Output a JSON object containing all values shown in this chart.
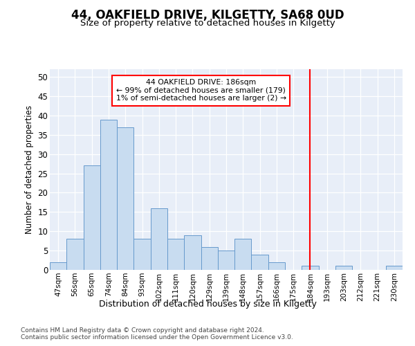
{
  "title": "44, OAKFIELD DRIVE, KILGETTY, SA68 0UD",
  "subtitle": "Size of property relative to detached houses in Kilgetty",
  "xlabel": "Distribution of detached houses by size in Kilgetty",
  "ylabel": "Number of detached properties",
  "bar_color": "#c8dcf0",
  "bar_edge_color": "#6699cc",
  "background_color": "#e8eef8",
  "categories": [
    "47sqm",
    "56sqm",
    "65sqm",
    "74sqm",
    "84sqm",
    "93sqm",
    "102sqm",
    "111sqm",
    "120sqm",
    "129sqm",
    "139sqm",
    "148sqm",
    "157sqm",
    "166sqm",
    "175sqm",
    "184sqm",
    "193sqm",
    "203sqm",
    "212sqm",
    "221sqm",
    "230sqm"
  ],
  "values": [
    2,
    8,
    27,
    39,
    37,
    8,
    16,
    8,
    9,
    6,
    5,
    8,
    4,
    2,
    0,
    1,
    0,
    1,
    0,
    0,
    1
  ],
  "ylim": [
    0,
    52
  ],
  "yticks": [
    0,
    5,
    10,
    15,
    20,
    25,
    30,
    35,
    40,
    45,
    50
  ],
  "vline_x": 15,
  "annotation_title": "44 OAKFIELD DRIVE: 186sqm",
  "annotation_line1": "← 99% of detached houses are smaller (179)",
  "annotation_line2": "1% of semi-detached houses are larger (2) →",
  "footer_line1": "Contains HM Land Registry data © Crown copyright and database right 2024.",
  "footer_line2": "Contains public sector information licensed under the Open Government Licence v3.0."
}
